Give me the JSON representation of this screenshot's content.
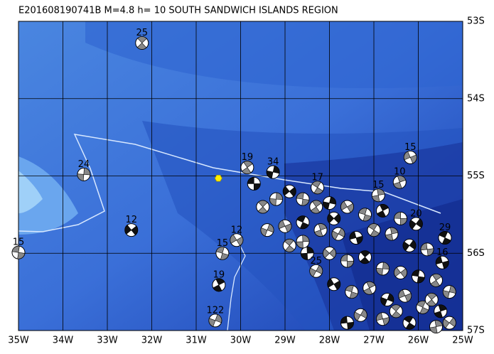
{
  "title": "E201608190741B M=4.8 h= 10 SOUTH SANDWICH ISLANDS REGION",
  "lon_ticks": [
    {
      "value": 35,
      "label": "35W"
    },
    {
      "value": 34,
      "label": "34W"
    },
    {
      "value": 33,
      "label": "33W"
    },
    {
      "value": 32,
      "label": "32W"
    },
    {
      "value": 31,
      "label": "31W"
    },
    {
      "value": 30,
      "label": "30W"
    },
    {
      "value": 29,
      "label": "29W"
    },
    {
      "value": 28,
      "label": "28W"
    },
    {
      "value": 27,
      "label": "27W"
    },
    {
      "value": 26,
      "label": "26W"
    },
    {
      "value": 25,
      "label": "25W"
    }
  ],
  "lat_ticks": [
    {
      "value": 53,
      "label": "53S"
    },
    {
      "value": 54,
      "label": "54S"
    },
    {
      "value": 55,
      "label": "55S"
    },
    {
      "value": 56,
      "label": "56S"
    },
    {
      "value": 57,
      "label": "57S"
    }
  ],
  "epicenter": {
    "lon": 30.5,
    "lat": 55.03
  },
  "events": [
    {
      "label": "25",
      "lon": 32.22,
      "lat": 53.28
    },
    {
      "label": "24",
      "lon": 33.53,
      "lat": 54.98
    },
    {
      "label": "12",
      "lon": 32.46,
      "lat": 55.7
    },
    {
      "label": "15",
      "lon": 35.0,
      "lat": 55.99
    },
    {
      "label": "19",
      "lon": 29.85,
      "lat": 54.89
    },
    {
      "label": "34",
      "lon": 29.27,
      "lat": 54.95
    },
    {
      "label": "12",
      "lon": 30.09,
      "lat": 55.83
    },
    {
      "label": "15",
      "lon": 30.41,
      "lat": 56.0
    },
    {
      "label": "19",
      "lon": 30.49,
      "lat": 56.41
    },
    {
      "label": "122",
      "lon": 30.57,
      "lat": 56.87
    },
    {
      "label": "15",
      "lon": 26.18,
      "lat": 54.76
    },
    {
      "label": "29",
      "lon": 25.4,
      "lat": 55.8
    },
    {
      "label": "10",
      "lon": 26.42,
      "lat": 55.08
    },
    {
      "label": "25",
      "lon": 28.3,
      "lat": 56.23
    },
    {
      "label": "16",
      "lon": 25.46,
      "lat": 56.12
    },
    {
      "label": "17",
      "lon": 28.27,
      "lat": 55.15
    },
    {
      "label": "15",
      "lon": 26.9,
      "lat": 55.25
    },
    {
      "label": "20",
      "lon": 26.05,
      "lat": 55.62
    }
  ],
  "cluster": [
    [
      29.7,
      55.1
    ],
    [
      29.5,
      55.4
    ],
    [
      29.2,
      55.3
    ],
    [
      28.9,
      55.2
    ],
    [
      28.6,
      55.3
    ],
    [
      28.3,
      55.4
    ],
    [
      28.0,
      55.35
    ],
    [
      27.6,
      55.4
    ],
    [
      27.2,
      55.5
    ],
    [
      26.8,
      55.45
    ],
    [
      29.4,
      55.7
    ],
    [
      29.0,
      55.65
    ],
    [
      28.6,
      55.6
    ],
    [
      28.2,
      55.7
    ],
    [
      27.8,
      55.75
    ],
    [
      27.4,
      55.8
    ],
    [
      27.0,
      55.7
    ],
    [
      26.6,
      55.75
    ],
    [
      26.2,
      55.9
    ],
    [
      25.8,
      55.95
    ],
    [
      28.9,
      55.9
    ],
    [
      28.5,
      56.0
    ],
    [
      28.0,
      56.0
    ],
    [
      27.6,
      56.1
    ],
    [
      27.2,
      56.05
    ],
    [
      26.8,
      56.2
    ],
    [
      26.4,
      56.25
    ],
    [
      26.0,
      56.3
    ],
    [
      25.6,
      56.35
    ],
    [
      25.3,
      56.5
    ],
    [
      27.9,
      56.4
    ],
    [
      27.5,
      56.5
    ],
    [
      27.1,
      56.45
    ],
    [
      26.7,
      56.6
    ],
    [
      26.3,
      56.55
    ],
    [
      25.9,
      56.7
    ],
    [
      25.5,
      56.75
    ],
    [
      27.3,
      56.8
    ],
    [
      26.8,
      56.85
    ],
    [
      26.2,
      56.9
    ],
    [
      25.6,
      56.95
    ],
    [
      25.3,
      56.9
    ],
    [
      27.6,
      56.9
    ],
    [
      26.5,
      56.75
    ],
    [
      28.6,
      55.85
    ],
    [
      27.9,
      55.55
    ],
    [
      26.4,
      55.55
    ],
    [
      25.7,
      56.6
    ]
  ]
}
